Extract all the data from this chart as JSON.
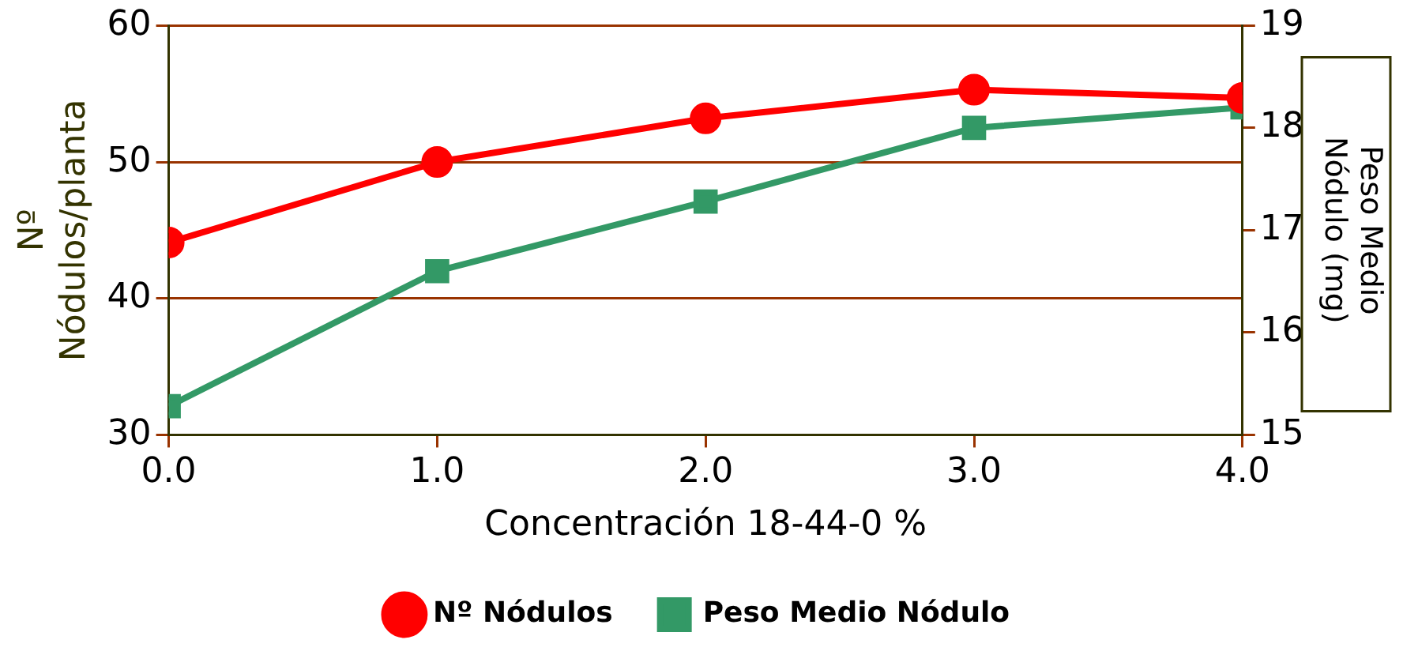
{
  "chart_data": {
    "type": "line",
    "xlabel": "Concentración 18-44-0 %",
    "ylabel": "Nº Nódulos/planta",
    "y2label": "Peso Medio Nódulo (mg)",
    "x": [
      0,
      1,
      2,
      3,
      4
    ],
    "xlim": [
      0,
      4
    ],
    "xticks": [
      {
        "value": 0,
        "label": "0.0"
      },
      {
        "value": 1,
        "label": "1.0"
      },
      {
        "value": 2,
        "label": "2.0"
      },
      {
        "value": 3,
        "label": "3.0"
      },
      {
        "value": 4,
        "label": "4.0"
      }
    ],
    "ylim": [
      30,
      60
    ],
    "yticks": [
      30,
      40,
      50,
      60
    ],
    "y2lim": [
      15,
      19
    ],
    "y2ticks": [
      15,
      16,
      17,
      18,
      19
    ],
    "grid": "y",
    "legend": "bottom",
    "series": [
      {
        "name": "Nº Nódulos",
        "color": "#ff0000",
        "marker": "circle",
        "values": [
          44.1,
          50,
          53.2,
          55.3,
          54.7
        ]
      },
      {
        "name": "Peso Medio Nódulo",
        "color": "#339966",
        "marker": "square",
        "axis": "y2",
        "values": [
          15.28,
          16.6,
          17.28,
          18.0,
          18.2
        ]
      }
    ]
  }
}
